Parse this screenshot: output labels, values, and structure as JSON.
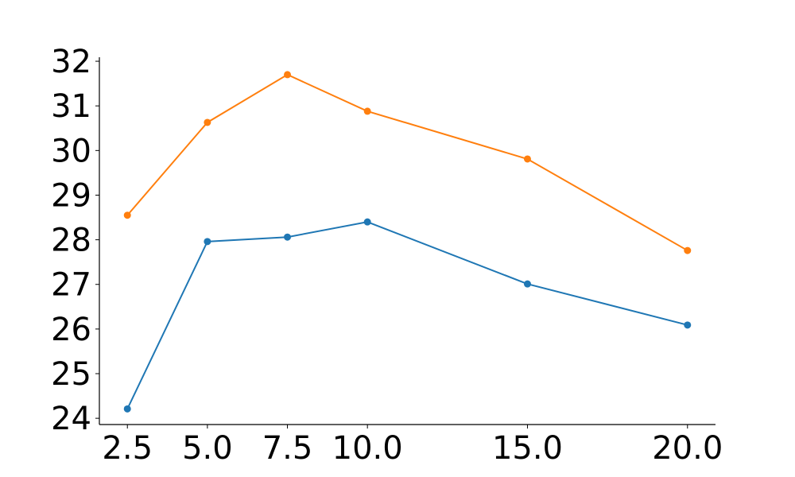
{
  "chart_data": {
    "type": "line",
    "x": [
      2.5,
      5,
      7.5,
      10,
      15,
      20
    ],
    "series": [
      {
        "color": "#1f77b4",
        "values": [
          24.21,
          27.96,
          28.06,
          28.4,
          27.01,
          26.09
        ]
      },
      {
        "color": "#ff7f0e",
        "values": [
          28.55,
          30.63,
          31.7,
          30.88,
          29.81,
          27.76
        ]
      }
    ],
    "xlim": [
      1.625,
      20.875
    ],
    "xticks": [
      2.5,
      {
        "value": 5,
        "label": "5.0"
      },
      7.5,
      {
        "value": 10,
        "label": "10.0"
      },
      {
        "value": 15,
        "label": "15.0"
      },
      {
        "value": 20,
        "label": "20.0"
      }
    ],
    "ylim": [
      23.86,
      32.09
    ],
    "yticks": [
      24,
      25,
      26,
      27,
      28,
      29,
      30,
      31,
      32
    ],
    "grid": false
  }
}
